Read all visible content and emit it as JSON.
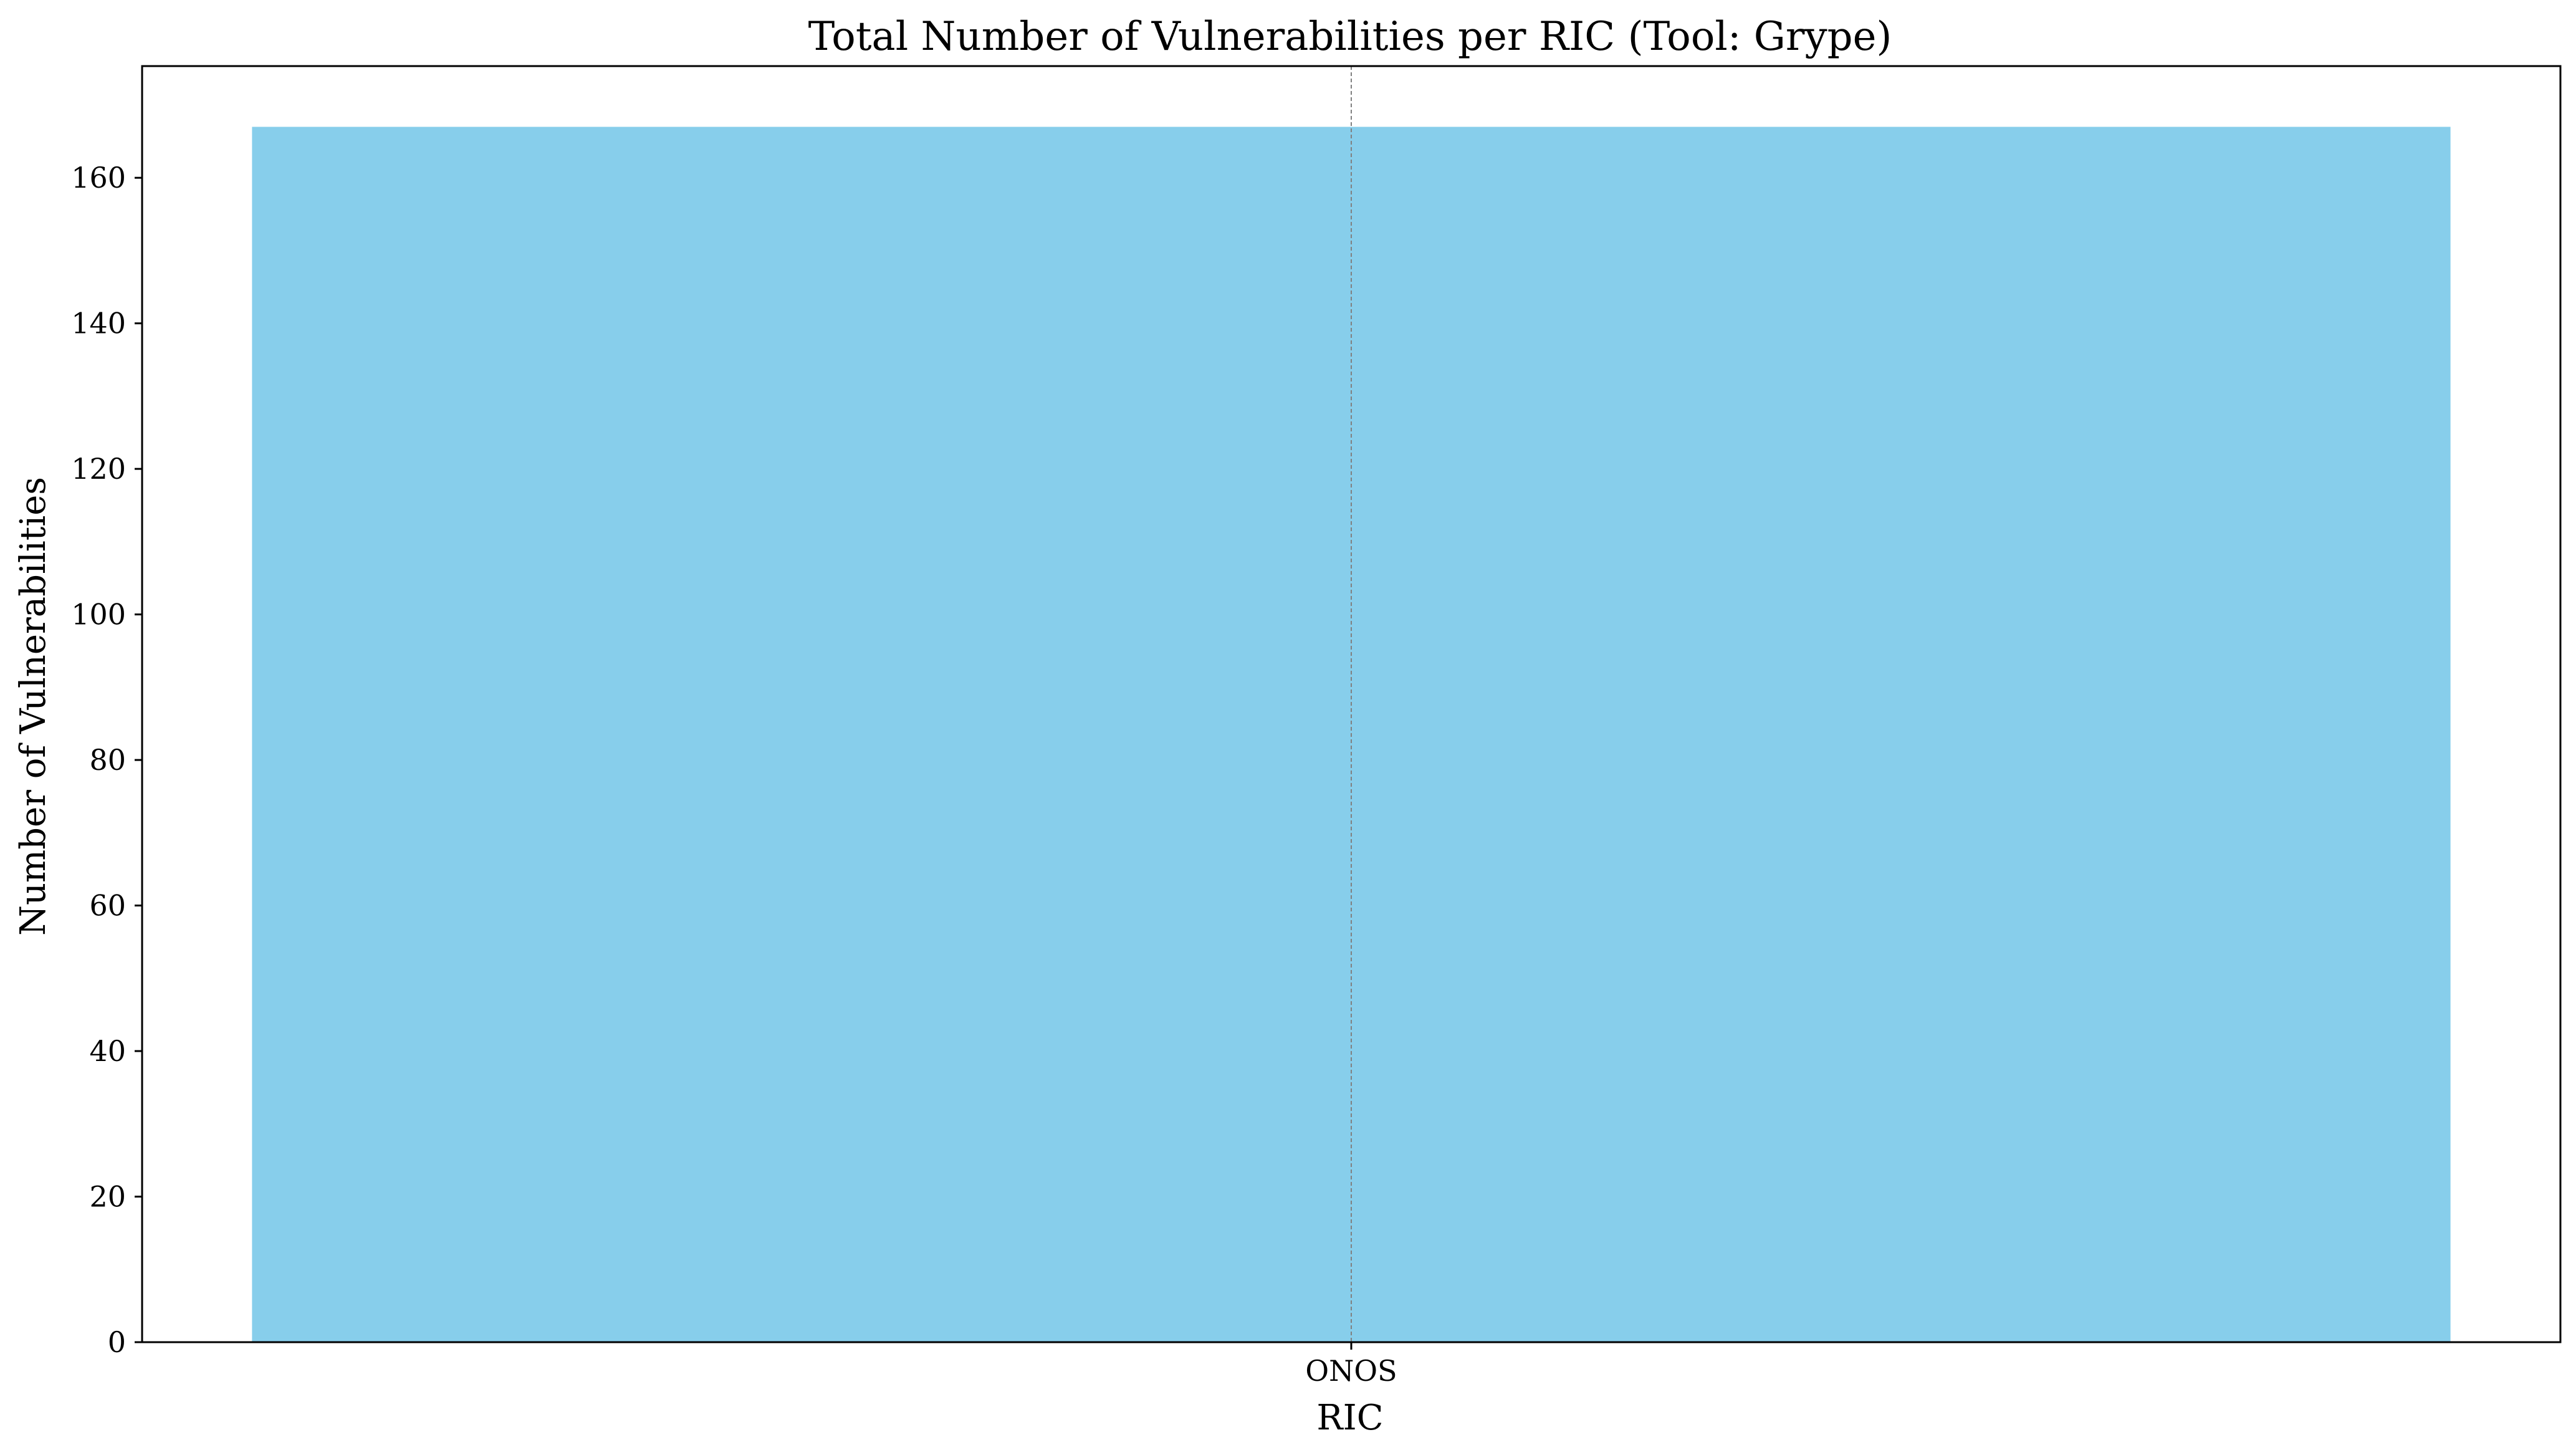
{
  "chart_data": {
    "type": "bar",
    "title": "Total Number of Vulnerabilities per RIC (Tool: Grype)",
    "xlabel": "RIC",
    "ylabel": "Number of Vulnerabilities",
    "categories": [
      "ONOS"
    ],
    "values": [
      167
    ],
    "ylim": [
      0,
      175.35
    ],
    "yticks": [
      0,
      20,
      40,
      60,
      80,
      100,
      120,
      140,
      160
    ],
    "grid": "x-axis dashed vertical line at category",
    "legend": "none",
    "bar_color": "#87CEEB"
  },
  "colors": {
    "background": "#ffffff",
    "axes": "#000000",
    "bar": "#87CEEB",
    "grid": "#808080"
  }
}
